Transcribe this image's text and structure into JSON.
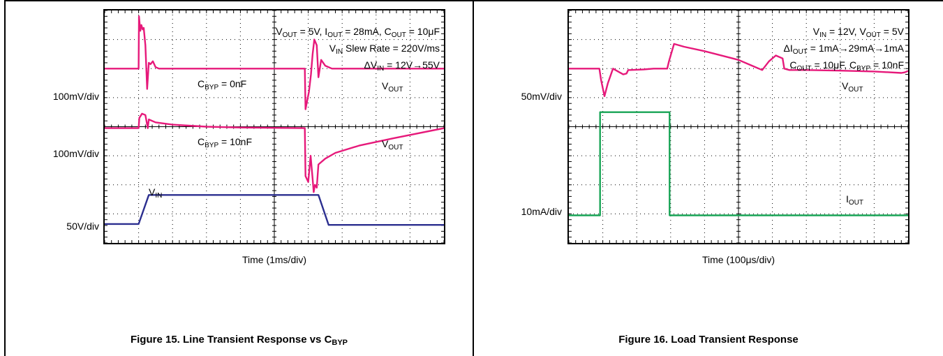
{
  "colors": {
    "vout": "#e6197a",
    "vin": "#2b2e8f",
    "iout": "#17a455",
    "grid": "#000000"
  },
  "figure15": {
    "caption": "Figure 15. Line Transient Response vs ",
    "caption_sub": "BYP",
    "caption_prefix_c": "C",
    "xlabel": "Time (1ms/div)",
    "ylabels": [
      "100mV/div",
      "100mV/div",
      "50V/div"
    ],
    "ann_line1": {
      "a": "V",
      "a_sub": "OUT",
      "b": " = 5V, I",
      "b_sub": "OUT",
      "c": " = 28mA, C",
      "c_sub": "OUT",
      "d": " = 10μF"
    },
    "ann_line2": {
      "a": "V",
      "a_sub": "IN",
      "b": " Slew Rate = 220V/ms"
    },
    "ann_line3": {
      "a": "ΔV",
      "a_sub": "IN",
      "b": " = 12V→55V"
    },
    "label_cbyp0": {
      "a": "C",
      "a_sub": "BYP",
      "b": " = 0nF"
    },
    "label_cbyp10": {
      "a": "C",
      "a_sub": "BYP",
      "b": " = 10nF"
    },
    "label_vout1": {
      "a": "V",
      "a_sub": "OUT"
    },
    "label_vout2": {
      "a": "V",
      "a_sub": "OUT"
    },
    "label_vin": {
      "a": "V",
      "a_sub": "IN"
    }
  },
  "figure16": {
    "caption": "Figure 16. Load Transient Response",
    "xlabel": "Time (100μs/div)",
    "ylabels": [
      "50mV/div",
      "10mA/div"
    ],
    "ann_line1": {
      "a": "V",
      "a_sub": "IN",
      "b": " = 12V, V",
      "b_sub": "OUT",
      "c": " = 5V"
    },
    "ann_line2": {
      "a": "ΔI",
      "a_sub": "OUT",
      "b": " = 1mA→29mA→1mA"
    },
    "ann_line3": {
      "a": "C",
      "a_sub": "OUT",
      "b": " = 10μF, C",
      "b_sub": "BYP",
      "c": " = 10nF"
    },
    "label_vout": {
      "a": "V",
      "a_sub": "OUT"
    },
    "label_iout": {
      "a": "I",
      "a_sub": "OUT"
    }
  },
  "chart_data": [
    {
      "type": "line",
      "title": "Figure 15. Line Transient Response vs CBYP",
      "xlabel": "Time (1ms/div)",
      "x_unit": "div",
      "xlim": [
        0,
        10
      ],
      "ylim": [
        0,
        8
      ],
      "grid": true,
      "series": [
        {
          "name": "VOUT (CBYP = 0nF)",
          "x": [
            0,
            1.0,
            1.01,
            1.05,
            1.08,
            1.12,
            1.15,
            1.2,
            1.25,
            1.3,
            1.35,
            1.42,
            1.5,
            1.6,
            1.8,
            5.9,
            5.92,
            6.02,
            6.08,
            6.13,
            6.18,
            6.25,
            6.3,
            6.38,
            6.5,
            6.7,
            10
          ],
          "y": [
            6.0,
            6.0,
            7.8,
            7.3,
            7.5,
            7.35,
            7.4,
            6.8,
            5.3,
            6.2,
            6.15,
            6.25,
            6.05,
            6.0,
            6.0,
            6.0,
            4.6,
            5.2,
            5.8,
            6.5,
            7.0,
            6.8,
            5.7,
            6.3,
            6.1,
            6.0,
            6.0
          ]
        },
        {
          "name": "VOUT (CBYP = 10nF)",
          "x": [
            0,
            1.0,
            1.02,
            1.1,
            1.2,
            1.27,
            1.3,
            1.5,
            2.0,
            3.0,
            4.0,
            5.0,
            5.9,
            5.92,
            6.0,
            6.07,
            6.13,
            6.16,
            6.2,
            6.25,
            6.3,
            6.5,
            6.8,
            7.5,
            8.5,
            10
          ],
          "y": [
            3.95,
            3.95,
            4.3,
            4.45,
            4.4,
            3.95,
            4.25,
            4.15,
            4.07,
            4.0,
            3.97,
            3.96,
            3.95,
            2.3,
            2.1,
            3.0,
            2.2,
            1.75,
            2.0,
            1.9,
            2.7,
            2.9,
            3.1,
            3.35,
            3.6,
            3.95
          ]
        },
        {
          "name": "VIN",
          "x": [
            0,
            1.0,
            1.3,
            6.3,
            6.6,
            10
          ],
          "y": [
            0.65,
            0.65,
            1.65,
            1.65,
            0.62,
            0.62
          ]
        }
      ]
    },
    {
      "type": "line",
      "title": "Figure 16. Load Transient Response",
      "xlabel": "Time (100μs/div)",
      "x_unit": "div",
      "xlim": [
        0,
        10
      ],
      "ylim": [
        0,
        8
      ],
      "grid": true,
      "series": [
        {
          "name": "VOUT",
          "x": [
            0,
            0.9,
            0.95,
            1.05,
            1.15,
            1.3,
            1.45,
            1.6,
            1.7,
            1.75,
            1.8,
            2.2,
            2.5,
            2.9,
            2.95,
            3.1,
            3.4,
            4.0,
            5.0,
            5.4,
            5.6,
            5.7,
            5.9,
            6.1,
            6.3,
            6.35,
            6.5,
            7.0,
            8.0,
            9.0,
            9.8,
            9.9,
            10
          ],
          "y": [
            6.0,
            6.0,
            5.6,
            5.05,
            5.5,
            6.0,
            5.9,
            5.8,
            5.83,
            5.95,
            5.95,
            5.97,
            6.0,
            6.0,
            6.25,
            6.85,
            6.75,
            6.6,
            6.3,
            6.1,
            6.0,
            5.95,
            6.25,
            6.45,
            6.35,
            6.0,
            5.95,
            5.95,
            5.93,
            5.9,
            5.85,
            5.87,
            5.92
          ]
        },
        {
          "name": "IOUT",
          "x": [
            0,
            0.92,
            0.92,
            2.97,
            2.97,
            10
          ],
          "y": [
            0.95,
            0.95,
            4.5,
            4.5,
            0.95,
            0.95
          ]
        }
      ]
    }
  ]
}
